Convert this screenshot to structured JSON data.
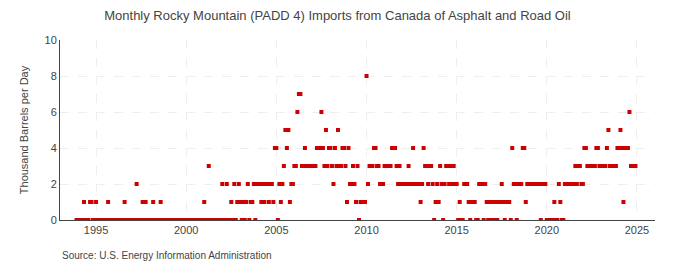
{
  "chart_data": {
    "type": "scatter",
    "title": "Monthly Rocky Mountain (PADD 4) Imports from Canada of Asphalt and Road Oil",
    "ylabel": "Thousand Barrels per Day",
    "source": "Source: U.S. Energy Information Administration",
    "color": "#cc0000",
    "marker": "square",
    "grid": true,
    "xlim": [
      1993.0,
      2026.0
    ],
    "ylim": [
      0,
      10
    ],
    "xticks": [
      1995,
      2000,
      2005,
      2010,
      2015,
      2020,
      2025
    ],
    "yticks": [
      0,
      2,
      4,
      6,
      8,
      10
    ],
    "x": [
      1993.917,
      1994.0,
      1994.083,
      1994.167,
      1994.25,
      1994.333,
      1994.417,
      1994.5,
      1994.583,
      1994.667,
      1994.75,
      1994.833,
      1994.917,
      1995.0,
      1995.083,
      1995.167,
      1995.25,
      1995.333,
      1995.417,
      1995.5,
      1995.583,
      1995.667,
      1995.75,
      1995.833,
      1995.917,
      1996.0,
      1996.083,
      1996.167,
      1996.25,
      1996.333,
      1996.417,
      1996.5,
      1996.583,
      1996.667,
      1996.75,
      1996.833,
      1996.917,
      1997.0,
      1997.083,
      1997.167,
      1997.25,
      1997.333,
      1997.417,
      1997.5,
      1997.583,
      1997.667,
      1997.75,
      1997.833,
      1997.917,
      1998.0,
      1998.083,
      1998.167,
      1998.25,
      1998.333,
      1998.417,
      1998.5,
      1998.583,
      1998.667,
      1998.75,
      1998.833,
      1998.917,
      1999.0,
      1999.083,
      1999.167,
      1999.25,
      1999.333,
      1999.417,
      1999.5,
      1999.583,
      1999.667,
      1999.75,
      1999.833,
      1999.917,
      2000.0,
      2000.083,
      2000.167,
      2000.25,
      2000.333,
      2000.417,
      2000.5,
      2000.583,
      2000.667,
      2000.75,
      2000.833,
      2000.917,
      2001.0,
      2001.083,
      2001.167,
      2001.25,
      2001.333,
      2001.417,
      2001.5,
      2001.583,
      2001.667,
      2001.75,
      2001.833,
      2001.917,
      2002.0,
      2002.083,
      2002.167,
      2002.25,
      2002.333,
      2002.417,
      2002.5,
      2002.583,
      2002.667,
      2002.75,
      2002.833,
      2002.917,
      2003.0,
      2003.083,
      2003.167,
      2003.25,
      2003.333,
      2003.417,
      2003.5,
      2003.583,
      2003.667,
      2003.75,
      2003.833,
      2003.917,
      2004.0,
      2004.083,
      2004.167,
      2004.25,
      2004.333,
      2004.417,
      2004.5,
      2004.583,
      2004.667,
      2004.75,
      2004.833,
      2004.917,
      2005.0,
      2005.083,
      2005.167,
      2005.25,
      2005.333,
      2005.417,
      2005.5,
      2005.583,
      2005.667,
      2005.75,
      2005.833,
      2005.917,
      2006.0,
      2006.083,
      2006.167,
      2006.25,
      2006.333,
      2006.417,
      2006.5,
      2006.583,
      2006.667,
      2006.75,
      2006.833,
      2006.917,
      2007.0,
      2007.083,
      2007.167,
      2007.25,
      2007.333,
      2007.417,
      2007.5,
      2007.583,
      2007.667,
      2007.75,
      2007.833,
      2007.917,
      2008.0,
      2008.083,
      2008.167,
      2008.25,
      2008.333,
      2008.417,
      2008.5,
      2008.583,
      2008.667,
      2008.75,
      2008.833,
      2008.917,
      2009.0,
      2009.083,
      2009.167,
      2009.25,
      2009.333,
      2009.417,
      2009.5,
      2009.583,
      2009.667,
      2009.75,
      2009.833,
      2009.917,
      2010.0,
      2010.083,
      2010.167,
      2010.25,
      2010.333,
      2010.417,
      2010.5,
      2010.583,
      2010.667,
      2010.75,
      2010.833,
      2010.917,
      2011.0,
      2011.083,
      2011.167,
      2011.25,
      2011.333,
      2011.417,
      2011.5,
      2011.583,
      2011.667,
      2011.75,
      2011.833,
      2011.917,
      2012.0,
      2012.083,
      2012.167,
      2012.25,
      2012.333,
      2012.417,
      2012.5,
      2012.583,
      2012.667,
      2012.75,
      2012.833,
      2012.917,
      2013.0,
      2013.083,
      2013.167,
      2013.25,
      2013.333,
      2013.417,
      2013.5,
      2013.583,
      2013.667,
      2013.75,
      2013.833,
      2013.917,
      2014.0,
      2014.083,
      2014.167,
      2014.25,
      2014.333,
      2014.417,
      2014.5,
      2014.583,
      2014.667,
      2014.75,
      2014.833,
      2014.917,
      2015.0,
      2015.083,
      2015.167,
      2015.25,
      2015.333,
      2015.417,
      2015.5,
      2015.583,
      2015.667,
      2015.75,
      2015.833,
      2015.917,
      2016.0,
      2016.083,
      2016.167,
      2016.25,
      2016.333,
      2016.417,
      2016.5,
      2016.583,
      2016.667,
      2016.75,
      2016.833,
      2016.917,
      2017.0,
      2017.083,
      2017.167,
      2017.25,
      2017.333,
      2017.417,
      2017.5,
      2017.583,
      2017.667,
      2017.75,
      2017.833,
      2017.917,
      2018.0,
      2018.083,
      2018.167,
      2018.25,
      2018.333,
      2018.417,
      2018.5,
      2018.583,
      2018.667,
      2018.75,
      2018.833,
      2018.917,
      2019.0,
      2019.083,
      2019.167,
      2019.25,
      2019.333,
      2019.417,
      2019.5,
      2019.583,
      2019.667,
      2019.75,
      2019.833,
      2019.917,
      2020.0,
      2020.083,
      2020.167,
      2020.25,
      2020.333,
      2020.417,
      2020.5,
      2020.583,
      2020.667,
      2020.75,
      2020.833,
      2020.917,
      2021.0,
      2021.083,
      2021.167,
      2021.25,
      2021.333,
      2021.417,
      2021.5,
      2021.583,
      2021.667,
      2021.75,
      2021.833,
      2021.917,
      2022.0,
      2022.083,
      2022.167,
      2022.25,
      2022.333,
      2022.417,
      2022.5,
      2022.583,
      2022.667,
      2022.75,
      2022.833,
      2022.917,
      2023.0,
      2023.083,
      2023.167,
      2023.25,
      2023.333,
      2023.417,
      2023.5,
      2023.583,
      2023.667,
      2023.75,
      2023.833,
      2023.917,
      2024.0,
      2024.083,
      2024.167,
      2024.25,
      2024.333,
      2024.417,
      2024.5,
      2024.583,
      2024.667,
      2024.75,
      2024.833,
      2024.917
    ],
    "values": [
      0,
      0,
      0,
      0,
      0,
      1,
      0,
      0,
      0,
      1,
      1,
      0,
      0,
      1,
      0,
      0,
      0,
      0,
      0,
      0,
      0,
      1,
      0,
      0,
      0,
      0,
      0,
      0,
      0,
      0,
      0,
      0,
      1,
      0,
      0,
      0,
      0,
      0,
      0,
      0,
      2,
      0,
      0,
      0,
      1,
      0,
      1,
      0,
      0,
      0,
      0,
      1,
      0,
      0,
      0,
      0,
      1,
      0,
      0,
      0,
      0,
      0,
      0,
      0,
      0,
      0,
      0,
      0,
      0,
      0,
      0,
      0,
      0,
      0,
      0,
      0,
      0,
      0,
      0,
      0,
      0,
      0,
      0,
      0,
      0,
      1,
      0,
      0,
      3,
      0,
      0,
      0,
      0,
      0,
      0,
      0,
      0,
      2,
      0,
      0,
      2,
      0,
      0,
      1,
      0,
      2,
      0,
      1,
      2,
      1,
      0,
      1,
      0,
      1,
      2,
      0,
      1,
      1,
      2,
      0,
      2,
      2,
      2,
      1,
      2,
      1,
      2,
      2,
      1,
      2,
      2,
      1,
      4,
      4,
      0,
      2,
      1,
      2,
      3,
      5,
      4,
      5,
      1,
      2,
      2,
      3,
      3,
      6,
      7,
      7,
      3,
      3,
      4,
      3,
      3,
      3,
      3,
      3,
      3,
      3,
      4,
      4,
      4,
      6,
      4,
      3,
      5,
      3,
      4,
      4,
      3,
      2,
      4,
      3,
      5,
      3,
      3,
      4,
      4,
      3,
      1,
      4,
      2,
      2,
      3,
      2,
      1,
      3,
      0,
      1,
      1,
      1,
      1,
      8,
      2,
      3,
      3,
      3,
      4,
      4,
      3,
      3,
      2,
      2,
      2,
      3,
      3,
      3,
      3,
      3,
      4,
      4,
      4,
      3,
      2,
      3,
      2,
      2,
      2,
      2,
      2,
      3,
      2,
      2,
      4,
      2,
      2,
      2,
      2,
      1,
      2,
      4,
      3,
      3,
      2,
      3,
      3,
      2,
      0,
      1,
      2,
      1,
      3,
      2,
      0,
      2,
      3,
      3,
      2,
      3,
      2,
      3,
      2,
      2,
      0,
      1,
      0,
      0,
      2,
      2,
      2,
      1,
      0,
      1,
      1,
      1,
      0,
      0,
      2,
      2,
      2,
      0,
      2,
      1,
      0,
      1,
      0,
      1,
      0,
      1,
      0,
      1,
      1,
      2,
      1,
      0,
      1,
      1,
      1,
      0,
      4,
      2,
      2,
      0,
      2,
      2,
      2,
      4,
      4,
      1,
      2,
      2,
      2,
      2,
      2,
      2,
      2,
      2,
      2,
      0,
      2,
      2,
      2,
      0,
      0,
      0,
      0,
      0,
      1,
      0,
      0,
      2,
      1,
      0,
      0,
      2,
      2,
      2,
      2,
      2,
      2,
      2,
      3,
      2,
      3,
      3,
      2,
      2,
      4,
      4,
      3,
      3,
      3,
      3,
      3,
      3,
      4,
      4,
      3,
      3,
      3,
      3,
      3,
      4,
      5,
      3,
      3,
      3,
      3,
      3,
      4,
      4,
      5,
      4,
      1,
      4,
      4,
      4,
      6,
      3,
      3,
      3,
      3
    ]
  }
}
